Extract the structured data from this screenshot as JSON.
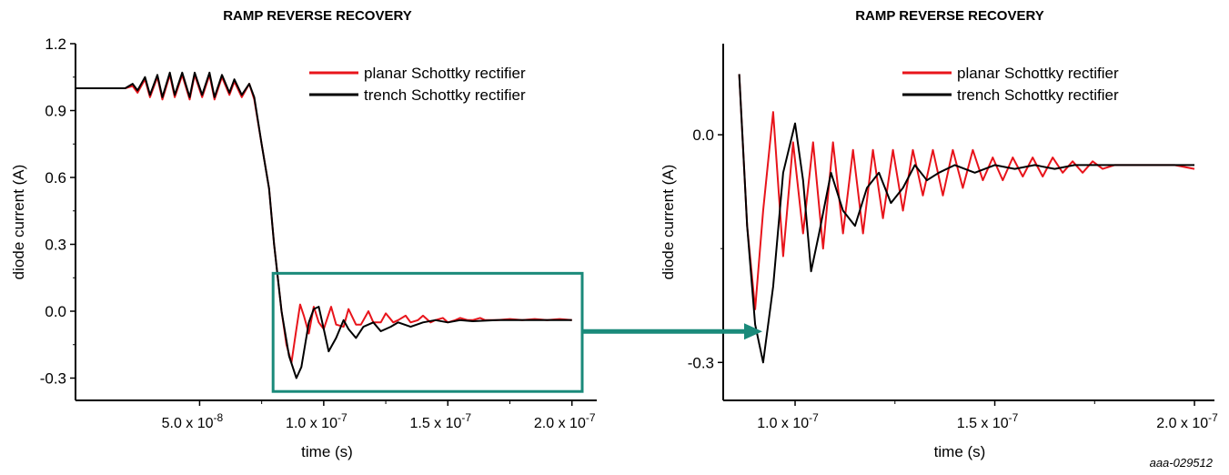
{
  "figure_id": "aaa-029512",
  "colors": {
    "planar": "#e8141b",
    "trench": "#000000",
    "highlight": "#1a8a7a"
  },
  "chart_data": [
    {
      "type": "line",
      "title": "RAMP REVERSE RECOVERY",
      "xlabel": "time (s)",
      "ylabel": "diode current (A)",
      "xlim": [
        0,
        2.1e-07
      ],
      "ylim": [
        -0.4,
        1.2
      ],
      "grid": false,
      "legend_position": "top-right",
      "x_ticks": [
        {
          "value": 5e-08,
          "mant": "5.0 x 10",
          "exp": "-8"
        },
        {
          "value": 1e-07,
          "mant": "1.0 x 10",
          "exp": "-7"
        },
        {
          "value": 1.5e-07,
          "mant": "1.5 x 10",
          "exp": "-7"
        },
        {
          "value": 2e-07,
          "mant": "2.0 x 10",
          "exp": "-7"
        }
      ],
      "y_ticks": [
        {
          "value": 1.2,
          "label": "1.2"
        },
        {
          "value": 0.9,
          "label": "0.9"
        },
        {
          "value": 0.6,
          "label": "0.6"
        },
        {
          "value": 0.3,
          "label": "0.3"
        },
        {
          "value": 0.0,
          "label": "0.0"
        },
        {
          "value": -0.3,
          "label": "-0.3"
        }
      ],
      "series": [
        {
          "name": "planar Schottky rectifier",
          "color": "#e8141b",
          "x": [
            0,
            5e-09,
            1e-08,
            1.5e-08,
            2e-08,
            2.3e-08,
            2.5e-08,
            2.8e-08,
            3e-08,
            3.3e-08,
            3.5e-08,
            3.8e-08,
            4e-08,
            4.3e-08,
            4.6e-08,
            4.8e-08,
            5.1e-08,
            5.4e-08,
            5.6e-08,
            5.9e-08,
            6.2e-08,
            6.4e-08,
            6.7e-08,
            7e-08,
            7.2e-08,
            7.5e-08,
            7.8e-08,
            8e-08,
            8.3e-08,
            8.5e-08,
            8.7e-08,
            8.9e-08,
            9.05e-08,
            9.2e-08,
            9.4e-08,
            9.6e-08,
            9.8e-08,
            1e-07,
            1.03e-07,
            1.05e-07,
            1.08e-07,
            1.1e-07,
            1.13e-07,
            1.15e-07,
            1.18e-07,
            1.2e-07,
            1.23e-07,
            1.25e-07,
            1.28e-07,
            1.3e-07,
            1.33e-07,
            1.35e-07,
            1.38e-07,
            1.4e-07,
            1.43e-07,
            1.45e-07,
            1.48e-07,
            1.5e-07,
            1.53e-07,
            1.55e-07,
            1.58e-07,
            1.6e-07,
            1.63e-07,
            1.65e-07,
            1.7e-07,
            1.75e-07,
            1.8e-07,
            1.85e-07,
            1.9e-07,
            1.95e-07,
            2e-07
          ],
          "y": [
            1.0,
            1.0,
            1.0,
            1.0,
            1.0,
            1.01,
            0.98,
            1.04,
            0.96,
            1.05,
            0.95,
            1.06,
            0.96,
            1.06,
            0.95,
            1.06,
            0.96,
            1.06,
            0.95,
            1.05,
            0.97,
            1.03,
            0.96,
            1.02,
            0.95,
            0.75,
            0.55,
            0.3,
            0.0,
            -0.15,
            -0.23,
            -0.08,
            0.03,
            -0.02,
            -0.1,
            0.02,
            -0.05,
            -0.08,
            0.02,
            -0.06,
            -0.07,
            0.01,
            -0.06,
            -0.06,
            0.0,
            -0.05,
            -0.05,
            -0.01,
            -0.05,
            -0.04,
            -0.02,
            -0.05,
            -0.04,
            -0.02,
            -0.05,
            -0.04,
            -0.03,
            -0.05,
            -0.04,
            -0.03,
            -0.04,
            -0.04,
            -0.03,
            -0.04,
            -0.04,
            -0.035,
            -0.04,
            -0.035,
            -0.04,
            -0.035,
            -0.04
          ]
        },
        {
          "name": "trench Schottky rectifier",
          "color": "#000000",
          "x": [
            0,
            5e-09,
            1e-08,
            1.5e-08,
            2e-08,
            2.3e-08,
            2.5e-08,
            2.8e-08,
            3e-08,
            3.3e-08,
            3.5e-08,
            3.8e-08,
            4e-08,
            4.3e-08,
            4.6e-08,
            4.8e-08,
            5.1e-08,
            5.4e-08,
            5.6e-08,
            5.9e-08,
            6.2e-08,
            6.4e-08,
            6.7e-08,
            7e-08,
            7.2e-08,
            7.5e-08,
            7.8e-08,
            8e-08,
            8.3e-08,
            8.6e-08,
            8.9e-08,
            9.1e-08,
            9.4e-08,
            9.6e-08,
            9.8e-08,
            1e-07,
            1.02e-07,
            1.05e-07,
            1.08e-07,
            1.1e-07,
            1.13e-07,
            1.16e-07,
            1.2e-07,
            1.23e-07,
            1.27e-07,
            1.3e-07,
            1.35e-07,
            1.4e-07,
            1.45e-07,
            1.5e-07,
            1.55e-07,
            1.6e-07,
            1.7e-07,
            1.8e-07,
            1.9e-07,
            2e-07
          ],
          "y": [
            1.0,
            1.0,
            1.0,
            1.0,
            1.0,
            1.02,
            0.99,
            1.05,
            0.97,
            1.06,
            0.96,
            1.07,
            0.97,
            1.07,
            0.96,
            1.07,
            0.97,
            1.07,
            0.96,
            1.06,
            0.98,
            1.04,
            0.97,
            1.02,
            0.96,
            0.75,
            0.55,
            0.3,
            0.0,
            -0.2,
            -0.3,
            -0.25,
            -0.05,
            0.01,
            0.02,
            -0.08,
            -0.18,
            -0.12,
            -0.04,
            -0.08,
            -0.12,
            -0.07,
            -0.05,
            -0.09,
            -0.07,
            -0.05,
            -0.07,
            -0.05,
            -0.04,
            -0.05,
            -0.04,
            -0.045,
            -0.04,
            -0.04,
            -0.04,
            -0.04
          ]
        }
      ]
    },
    {
      "type": "line",
      "title": "RAMP REVERSE RECOVERY",
      "xlabel": "time (s)",
      "ylabel": "diode current (A)",
      "xlim": [
        8.2e-08,
        2.05e-07
      ],
      "ylim": [
        -0.35,
        0.12
      ],
      "grid": false,
      "legend_position": "top-right",
      "x_ticks": [
        {
          "value": 1e-07,
          "mant": "1.0 x 10",
          "exp": "-7"
        },
        {
          "value": 1.5e-07,
          "mant": "1.5 x 10",
          "exp": "-7"
        },
        {
          "value": 2e-07,
          "mant": "2.0 x 10",
          "exp": "-7"
        }
      ],
      "y_ticks": [
        {
          "value": 0.0,
          "label": "0.0"
        },
        {
          "value": -0.3,
          "label": "-0.3"
        }
      ],
      "series": [
        {
          "name": "planar Schottky rectifier",
          "color": "#e8141b",
          "x": [
            8.6e-08,
            8.8e-08,
            9e-08,
            9.2e-08,
            9.45e-08,
            9.7e-08,
            9.95e-08,
            1.02e-07,
            1.045e-07,
            1.07e-07,
            1.095e-07,
            1.12e-07,
            1.145e-07,
            1.17e-07,
            1.195e-07,
            1.22e-07,
            1.245e-07,
            1.27e-07,
            1.295e-07,
            1.32e-07,
            1.345e-07,
            1.37e-07,
            1.395e-07,
            1.42e-07,
            1.445e-07,
            1.47e-07,
            1.495e-07,
            1.52e-07,
            1.545e-07,
            1.57e-07,
            1.595e-07,
            1.62e-07,
            1.645e-07,
            1.67e-07,
            1.695e-07,
            1.72e-07,
            1.745e-07,
            1.77e-07,
            1.8e-07,
            1.85e-07,
            1.9e-07,
            1.95e-07,
            2e-07
          ],
          "y": [
            0.08,
            -0.12,
            -0.23,
            -0.1,
            0.03,
            -0.16,
            -0.01,
            -0.13,
            -0.01,
            -0.15,
            -0.01,
            -0.13,
            -0.02,
            -0.13,
            -0.02,
            -0.11,
            -0.02,
            -0.1,
            -0.02,
            -0.08,
            -0.02,
            -0.08,
            -0.02,
            -0.07,
            -0.02,
            -0.06,
            -0.03,
            -0.06,
            -0.03,
            -0.055,
            -0.03,
            -0.055,
            -0.03,
            -0.05,
            -0.035,
            -0.05,
            -0.035,
            -0.045,
            -0.04,
            -0.04,
            -0.04,
            -0.04,
            -0.045
          ]
        },
        {
          "name": "trench Schottky rectifier",
          "color": "#000000",
          "x": [
            8.6e-08,
            8.8e-08,
            9e-08,
            9.2e-08,
            9.45e-08,
            9.7e-08,
            1e-07,
            1.02e-07,
            1.04e-07,
            1.06e-07,
            1.09e-07,
            1.12e-07,
            1.15e-07,
            1.18e-07,
            1.21e-07,
            1.24e-07,
            1.27e-07,
            1.3e-07,
            1.33e-07,
            1.36e-07,
            1.4e-07,
            1.45e-07,
            1.5e-07,
            1.55e-07,
            1.6e-07,
            1.65e-07,
            1.7e-07,
            1.75e-07,
            1.8e-07,
            1.9e-07,
            2e-07
          ],
          "y": [
            0.08,
            -0.12,
            -0.25,
            -0.3,
            -0.2,
            -0.05,
            0.015,
            -0.06,
            -0.18,
            -0.13,
            -0.05,
            -0.1,
            -0.12,
            -0.07,
            -0.05,
            -0.09,
            -0.07,
            -0.04,
            -0.06,
            -0.05,
            -0.04,
            -0.05,
            -0.04,
            -0.045,
            -0.04,
            -0.045,
            -0.04,
            -0.04,
            -0.04,
            -0.04,
            -0.04
          ]
        }
      ]
    }
  ]
}
